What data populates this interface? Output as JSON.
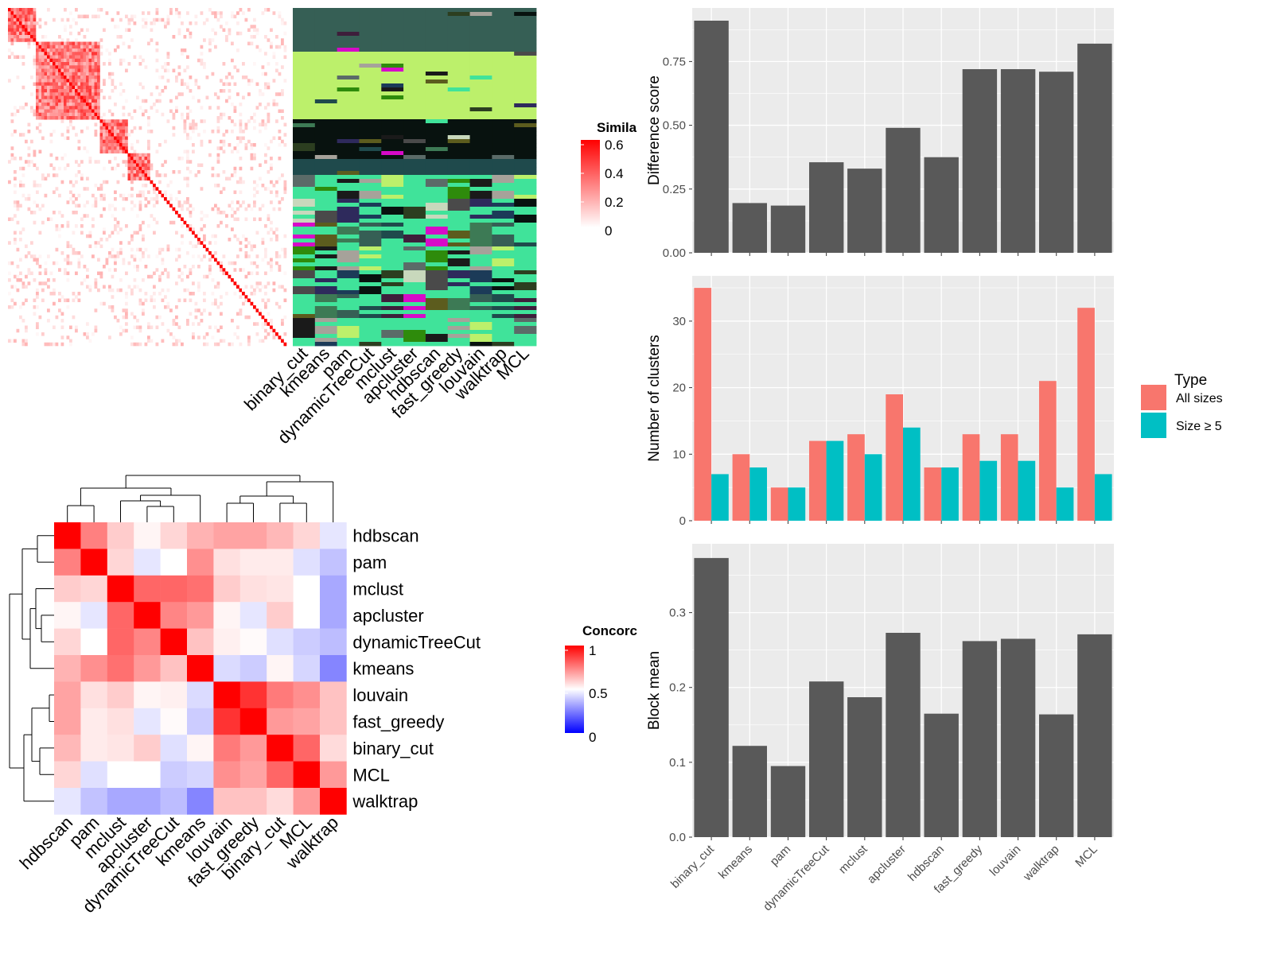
{
  "methods": [
    "binary_cut",
    "kmeans",
    "pam",
    "dynamicTreeCut",
    "mclust",
    "apcluster",
    "hdbscan",
    "fast_greedy",
    "louvain",
    "walktrap",
    "MCL"
  ],
  "legends": {
    "similarity": {
      "title": "Simila",
      "ticks": [
        "0.6",
        "0.4",
        "0.2",
        "0"
      ]
    },
    "concordance": {
      "title": "Concorc",
      "ticks": [
        "1",
        "0.5",
        "0"
      ]
    },
    "type": {
      "title": "Type",
      "items": [
        {
          "label": "All sizes",
          "color": "#F8766D"
        },
        {
          "label": "Size ≥ 5",
          "color": "#00BFC4"
        }
      ]
    }
  },
  "colors": {
    "bar": "#595959",
    "panel": "#EBEBEB",
    "grid": "#ffffff",
    "high": "#FF0000",
    "mid": "#FFFFFF",
    "low": "#0000FF"
  },
  "chart_data": [
    {
      "type": "heatmap",
      "title": "",
      "description_key": "similarity_matrix",
      "legend_title": "Simila",
      "range": [
        0,
        0.6
      ]
    },
    {
      "type": "heatmap",
      "title": "",
      "legend_title": "Concorc",
      "categories": [
        "hdbscan",
        "pam",
        "mclust",
        "apcluster",
        "dynamicTreeCut",
        "kmeans",
        "louvain",
        "fast_greedy",
        "binary_cut",
        "MCL",
        "walktrap"
      ],
      "values": [
        [
          1.0,
          0.75,
          0.6,
          0.52,
          0.58,
          0.65,
          0.68,
          0.68,
          0.64,
          0.58,
          0.45
        ],
        [
          0.75,
          1.0,
          0.58,
          0.45,
          0.5,
          0.72,
          0.56,
          0.54,
          0.54,
          0.44,
          0.38
        ],
        [
          0.6,
          0.58,
          1.0,
          0.8,
          0.8,
          0.78,
          0.6,
          0.56,
          0.55,
          0.5,
          0.33
        ],
        [
          0.52,
          0.45,
          0.8,
          1.0,
          0.74,
          0.7,
          0.52,
          0.45,
          0.6,
          0.5,
          0.33
        ],
        [
          0.58,
          0.5,
          0.8,
          0.74,
          1.0,
          0.62,
          0.53,
          0.51,
          0.44,
          0.4,
          0.37
        ],
        [
          0.65,
          0.72,
          0.78,
          0.7,
          0.62,
          1.0,
          0.43,
          0.4,
          0.52,
          0.42,
          0.26
        ],
        [
          0.68,
          0.56,
          0.6,
          0.52,
          0.53,
          0.43,
          1.0,
          0.9,
          0.76,
          0.72,
          0.62
        ],
        [
          0.68,
          0.54,
          0.56,
          0.45,
          0.51,
          0.4,
          0.9,
          1.0,
          0.7,
          0.68,
          0.62
        ],
        [
          0.64,
          0.54,
          0.55,
          0.6,
          0.44,
          0.52,
          0.76,
          0.7,
          1.0,
          0.8,
          0.57
        ],
        [
          0.58,
          0.44,
          0.5,
          0.5,
          0.4,
          0.42,
          0.72,
          0.68,
          0.8,
          1.0,
          0.7
        ],
        [
          0.45,
          0.38,
          0.33,
          0.33,
          0.37,
          0.26,
          0.62,
          0.62,
          0.57,
          0.7,
          1.0
        ]
      ],
      "range": [
        0,
        1
      ]
    },
    {
      "type": "bar",
      "title": "",
      "ylabel": "Difference score",
      "categories": [
        "binary_cut",
        "kmeans",
        "pam",
        "dynamicTreeCut",
        "mclust",
        "apcluster",
        "hdbscan",
        "fast_greedy",
        "louvain",
        "walktrap",
        "MCL"
      ],
      "values": [
        0.91,
        0.195,
        0.185,
        0.355,
        0.33,
        0.49,
        0.375,
        0.72,
        0.72,
        0.71,
        0.82
      ],
      "yticks": [
        "0.00",
        "0.25",
        "0.50",
        "0.75"
      ],
      "ylim": [
        0,
        0.96
      ]
    },
    {
      "type": "bar",
      "title": "",
      "ylabel": "Number of clusters",
      "legend_title": "Type",
      "categories": [
        "binary_cut",
        "kmeans",
        "pam",
        "dynamicTreeCut",
        "mclust",
        "apcluster",
        "hdbscan",
        "fast_greedy",
        "louvain",
        "walktrap",
        "MCL"
      ],
      "series": [
        {
          "name": "All sizes",
          "values": [
            35,
            10,
            5,
            12,
            13,
            19,
            8,
            13,
            13,
            21,
            32
          ]
        },
        {
          "name": "Size ≥ 5",
          "values": [
            7,
            8,
            5,
            12,
            10,
            14,
            8,
            9,
            9,
            5,
            7
          ]
        }
      ],
      "yticks": [
        "0",
        "10",
        "20",
        "30"
      ],
      "ylim": [
        0,
        36.8
      ]
    },
    {
      "type": "bar",
      "title": "",
      "ylabel": "Block mean",
      "categories": [
        "binary_cut",
        "kmeans",
        "pam",
        "dynamicTreeCut",
        "mclust",
        "apcluster",
        "hdbscan",
        "fast_greedy",
        "louvain",
        "walktrap",
        "MCL"
      ],
      "values": [
        0.373,
        0.122,
        0.095,
        0.208,
        0.187,
        0.273,
        0.165,
        0.262,
        0.265,
        0.164,
        0.271
      ],
      "yticks": [
        "0.0",
        "0.1",
        "0.2",
        "0.3"
      ],
      "ylim": [
        0,
        0.392
      ]
    }
  ]
}
